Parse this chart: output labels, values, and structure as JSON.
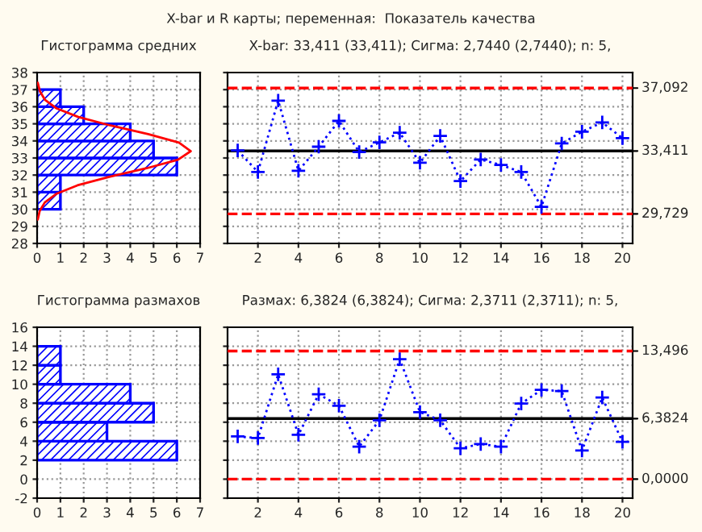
{
  "chart_data": [
    {
      "type": "histogram",
      "title": "X-bar и R карты; переменная:  Показатель качества",
      "subtitle": "Гистограмма средних",
      "orientation": "horizontal",
      "color": "#0000ff",
      "bins": [
        30,
        31,
        32,
        33,
        34,
        35,
        36,
        37
      ],
      "values": [
        1,
        1,
        6,
        5,
        4,
        2,
        1
      ],
      "series": [
        {
          "type": "line",
          "color": "#ff0000",
          "x": [
            29.4,
            29.9,
            30.4,
            30.9,
            31.4,
            31.9,
            32.4,
            32.9,
            33.4,
            33.9,
            34.4,
            34.9,
            35.4,
            35.9,
            36.4,
            36.9,
            37.4
          ],
          "values": [
            0.03,
            0.11,
            0.33,
            0.82,
            1.73,
            3.1,
            4.7,
            6.05,
            6.6,
            6.09,
            4.77,
            3.16,
            1.77,
            0.84,
            0.34,
            0.12,
            0.03
          ]
        }
      ],
      "xlim": [
        0,
        7
      ],
      "xticks": [
        0,
        1,
        2,
        3,
        4,
        5,
        6,
        7
      ],
      "ylim": [
        28,
        38
      ],
      "yticks": [
        28,
        29,
        30,
        31,
        32,
        33,
        34,
        35,
        36,
        37,
        38
      ],
      "grid": true
    },
    {
      "type": "line",
      "title": "X-bar: 33,411 (33,411); Сигма: 2,7440 (2,7440); n: 5,",
      "x": [
        1,
        2,
        3,
        4,
        5,
        6,
        7,
        8,
        9,
        10,
        11,
        12,
        13,
        14,
        15,
        16,
        17,
        18,
        19,
        20
      ],
      "series": [
        {
          "color": "#0000ff",
          "values": [
            33.44,
            32.18,
            36.36,
            32.25,
            33.66,
            35.17,
            33.35,
            33.91,
            34.48,
            32.72,
            34.29,
            31.65,
            32.91,
            32.59,
            32.18,
            30.14,
            33.85,
            34.54,
            35.08,
            34.16
          ]
        }
      ],
      "marker": "cross",
      "line_style": "dotted",
      "xlim": [
        0.5,
        20.5
      ],
      "xticks": [
        2,
        4,
        6,
        8,
        10,
        12,
        14,
        16,
        18,
        20
      ],
      "ylim": [
        28,
        38
      ],
      "yticks": [
        28,
        29,
        30,
        31,
        32,
        33,
        34,
        35,
        36,
        37,
        38
      ],
      "tick_labels": "x",
      "ref_lines": [
        {
          "axis": "y",
          "value": 37.092,
          "label": "37,092",
          "color": "#ff0000",
          "line_style": "dashed"
        },
        {
          "axis": "y",
          "value": 33.411,
          "label": "33,411",
          "color": "#000000",
          "line_style": "solid"
        },
        {
          "axis": "y",
          "value": 29.729,
          "label": "29,729",
          "color": "#ff0000",
          "line_style": "dashed"
        }
      ],
      "grid": true
    },
    {
      "type": "histogram",
      "title": "Гистограмма размахов",
      "orientation": "horizontal",
      "color": "#0000ff",
      "bins": [
        2,
        4,
        6,
        8,
        10,
        12,
        14
      ],
      "values": [
        6,
        3,
        5,
        4,
        1,
        1
      ],
      "xlim": [
        0,
        7
      ],
      "xticks": [
        0,
        1,
        2,
        3,
        4,
        5,
        6,
        7
      ],
      "ylim": [
        -2,
        16
      ],
      "yticks": [
        -2,
        0,
        2,
        4,
        6,
        8,
        10,
        12,
        14,
        16
      ],
      "grid": true
    },
    {
      "type": "line",
      "title": "Размах: 6,3824 (6,3824); Сигма: 2,3711 (2,3711); n: 5,",
      "x": [
        1,
        2,
        3,
        4,
        5,
        6,
        7,
        8,
        9,
        10,
        11,
        12,
        13,
        14,
        15,
        16,
        17,
        18,
        19,
        20
      ],
      "series": [
        {
          "color": "#0000ff",
          "values": [
            4.5,
            4.33,
            11.05,
            4.67,
            8.94,
            7.74,
            3.42,
            6.21,
            12.64,
            7.06,
            6.21,
            3.25,
            3.7,
            3.42,
            7.97,
            9.4,
            9.28,
            3.02,
            8.6,
            3.93
          ]
        }
      ],
      "marker": "cross",
      "line_style": "dotted",
      "xlim": [
        0.5,
        20.5
      ],
      "xticks": [
        2,
        4,
        6,
        8,
        10,
        12,
        14,
        16,
        18,
        20
      ],
      "ylim": [
        -2,
        16
      ],
      "yticks": [
        -2,
        0,
        2,
        4,
        6,
        8,
        10,
        12,
        14,
        16
      ],
      "tick_labels": "x",
      "ref_lines": [
        {
          "axis": "y",
          "value": 13.496,
          "label": "13,496",
          "color": "#ff0000",
          "line_style": "dashed"
        },
        {
          "axis": "y",
          "value": 6.3824,
          "label": "6,3824",
          "color": "#000000",
          "line_style": "solid"
        },
        {
          "axis": "y",
          "value": 0,
          "label": "0,0000",
          "color": "#ff0000",
          "line_style": "dashed"
        }
      ],
      "grid": true
    }
  ]
}
